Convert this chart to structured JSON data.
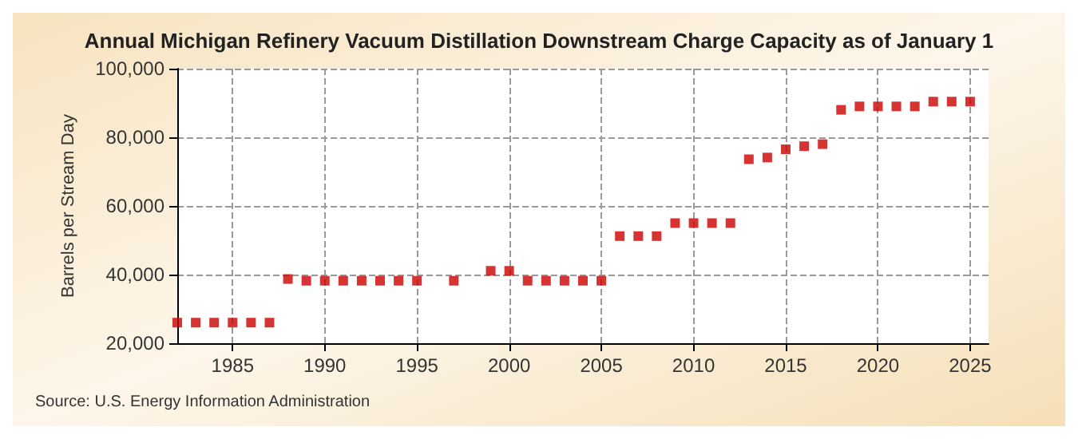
{
  "chart_data": {
    "type": "scatter",
    "title": "Annual Michigan Refinery Vacuum Distillation Downstream Charge Capacity as of January 1",
    "ylabel": "Barrels per Stream Day",
    "annotations": [
      "Source: U.S. Energy Information Administration"
    ],
    "x": [
      1982,
      1983,
      1984,
      1985,
      1986,
      1987,
      1988,
      1989,
      1990,
      1991,
      1992,
      1993,
      1994,
      1995,
      1997,
      1999,
      2000,
      2001,
      2002,
      2003,
      2004,
      2005,
      2006,
      2007,
      2008,
      2009,
      2010,
      2011,
      2012,
      2013,
      2014,
      2015,
      2016,
      2017,
      2018,
      2019,
      2020,
      2021,
      2022,
      2023,
      2024,
      2025
    ],
    "series": [
      {
        "color": "#cc0000",
        "values": [
          26000,
          26000,
          26000,
          26000,
          26000,
          26000,
          38700,
          38200,
          38200,
          38200,
          38200,
          38200,
          38200,
          38200,
          38200,
          41100,
          41100,
          38200,
          38200,
          38200,
          38200,
          38200,
          51200,
          51200,
          51200,
          55000,
          55000,
          55000,
          55000,
          73600,
          74100,
          76500,
          77400,
          78000,
          88000,
          89000,
          89000,
          89000,
          89000,
          90400,
          90400,
          90400
        ]
      }
    ],
    "xlim": [
      1982,
      2026
    ],
    "xticks": [
      1985,
      1990,
      1995,
      2000,
      2005,
      2010,
      2015,
      2020,
      2025
    ],
    "ylim": [
      20000,
      100000
    ],
    "yticks": [
      {
        "value": 20000,
        "label": "20,000"
      },
      {
        "value": 40000,
        "label": "40,000"
      },
      {
        "value": 60000,
        "label": "60,000"
      },
      {
        "value": 80000,
        "label": "80,000"
      },
      {
        "value": 100000,
        "label": "100,000"
      }
    ],
    "grid": true,
    "marker": "square"
  }
}
